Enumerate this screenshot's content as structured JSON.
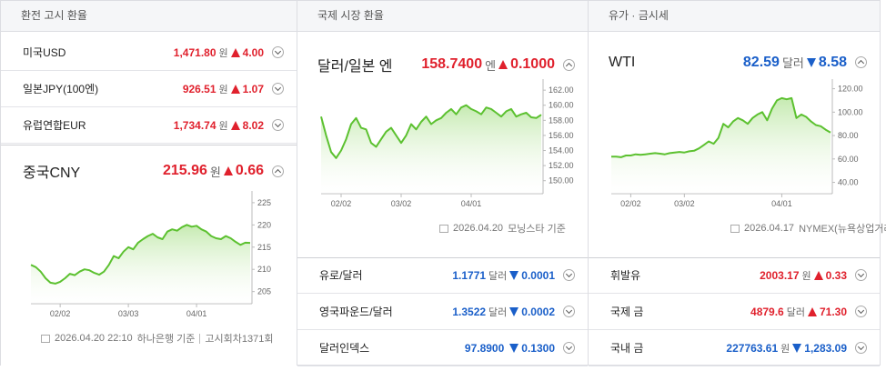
{
  "panels": [
    {
      "title": "환전 고시 환율",
      "rows": [
        {
          "name": "미국USD",
          "value": "1,471.80",
          "unit": "원",
          "change": "4.00",
          "dir": "up"
        },
        {
          "name": "일본JPY(100엔)",
          "value": "926.51",
          "unit": "원",
          "change": "1.07",
          "dir": "up"
        },
        {
          "name": "유럽연합EUR",
          "value": "1,734.74",
          "unit": "원",
          "change": "8.02",
          "dir": "up"
        }
      ],
      "featured": {
        "name": "중국CNY",
        "value": "215.96",
        "unit": "원",
        "change": "0.66",
        "dir": "up"
      },
      "chart": {
        "type": "line",
        "color": "#5cc130",
        "ylim": [
          203.5,
          226
        ],
        "yticks": [
          205,
          210,
          215,
          220,
          225
        ],
        "categories": [
          null,
          null,
          null,
          null,
          null,
          null,
          "02/02",
          null,
          null,
          null,
          null,
          null,
          null,
          null,
          null,
          null,
          null,
          null,
          null,
          null,
          "03/03",
          null,
          null,
          null,
          null,
          null,
          null,
          null,
          null,
          null,
          null,
          null,
          null,
          null,
          "04/01",
          null,
          null,
          null,
          null,
          null,
          null,
          null,
          null,
          null,
          null,
          null
        ],
        "values": [
          211,
          210.5,
          209.5,
          208,
          207,
          206.8,
          207.2,
          208,
          209,
          208.7,
          209.5,
          210,
          209.8,
          209.2,
          208.8,
          209.5,
          211,
          213,
          212.5,
          214,
          215,
          214.5,
          216,
          216.8,
          217.5,
          218,
          217.2,
          216.8,
          218.5,
          219,
          218.7,
          219.5,
          220,
          219.6,
          219.8,
          219,
          218.5,
          217.5,
          217,
          216.8,
          217.5,
          217,
          216.2,
          215.5,
          216,
          215.96
        ]
      },
      "footer": [
        "2026.04.20 22:10",
        "하나은행 기준",
        "고시회차1371회"
      ]
    },
    {
      "title": "국제 시장 환율",
      "featured": {
        "name": "달러/일본 엔",
        "value": "158.7400",
        "unit": "엔",
        "change": "0.1000",
        "dir": "up"
      },
      "chart": {
        "type": "line",
        "color": "#5cc130",
        "ylim": [
          149,
          162.5
        ],
        "yticks": [
          {
            "value": 150,
            "label": "150.00"
          },
          {
            "value": 152,
            "label": "152.00"
          },
          {
            "value": 154,
            "label": "154.00"
          },
          {
            "value": 156,
            "label": "156.00"
          },
          {
            "value": 158,
            "label": "158.00"
          },
          {
            "value": 160,
            "label": "160.00"
          },
          {
            "value": 162,
            "label": "162.00"
          }
        ],
        "categories": [
          null,
          null,
          null,
          null,
          "02/02",
          null,
          null,
          null,
          null,
          null,
          null,
          null,
          null,
          null,
          null,
          null,
          "03/02",
          null,
          null,
          null,
          null,
          null,
          null,
          null,
          null,
          null,
          null,
          null,
          null,
          null,
          "04/01",
          null,
          null,
          null,
          null,
          null,
          null,
          null,
          null,
          null,
          null,
          null,
          null,
          null,
          null
        ],
        "values": [
          158.5,
          156,
          153.8,
          153,
          154,
          155.5,
          157.5,
          158.3,
          157,
          156.8,
          155,
          154.5,
          155.5,
          156.5,
          157,
          156,
          155,
          156,
          157.5,
          156.8,
          157.8,
          158.5,
          157.5,
          158,
          158.3,
          159,
          159.5,
          158.8,
          159.7,
          160,
          159.5,
          159.2,
          158.8,
          159.7,
          159.5,
          159,
          158.5,
          159.2,
          159.5,
          158.5,
          158.8,
          159,
          158.4,
          158.3,
          158.74
        ]
      },
      "footer": [
        "2026.04.20",
        "모닝스타 기준"
      ],
      "rows": [
        {
          "name": "유로/달러",
          "value": "1.1771",
          "unit": "달러",
          "change": "0.0001",
          "dir": "down"
        },
        {
          "name": "영국파운드/달러",
          "value": "1.3522",
          "unit": "달러",
          "change": "0.0002",
          "dir": "down"
        },
        {
          "name": "달러인덱스",
          "value": "97.8900",
          "unit": "",
          "change": "0.1300",
          "dir": "down"
        }
      ]
    },
    {
      "title": "유가 · 금시세",
      "featured": {
        "name": "WTI",
        "value": "82.59",
        "unit": "달러",
        "change": "8.58",
        "dir": "down"
      },
      "chart": {
        "type": "line",
        "color": "#5cc130",
        "ylim": [
          35,
          122
        ],
        "yticks": [
          {
            "value": 40,
            "label": "40.00"
          },
          {
            "value": 60,
            "label": "60.00"
          },
          {
            "value": 80,
            "label": "80.00"
          },
          {
            "value": 100,
            "label": "100.00"
          },
          {
            "value": 120,
            "label": "120.00"
          }
        ],
        "categories": [
          null,
          null,
          null,
          null,
          "02/02",
          null,
          null,
          null,
          null,
          null,
          null,
          null,
          null,
          null,
          null,
          "03/02",
          null,
          null,
          null,
          null,
          null,
          null,
          null,
          null,
          null,
          null,
          null,
          null,
          null,
          null,
          null,
          null,
          null,
          null,
          null,
          "04/01",
          null,
          null,
          null,
          null,
          null,
          null,
          null,
          null,
          null,
          null
        ],
        "values": [
          62,
          62,
          61.5,
          63,
          63,
          64,
          63.5,
          64,
          64.5,
          65,
          64.5,
          64,
          65,
          65.5,
          66,
          65.5,
          66.5,
          67,
          69,
          72,
          75,
          73,
          78,
          90,
          87,
          92,
          95,
          93,
          90,
          95,
          98,
          100,
          93,
          103,
          110,
          112,
          111,
          112,
          95,
          98,
          96,
          92,
          89,
          88,
          85,
          82.59
        ]
      },
      "footer": [
        "2026.04.17",
        "NYMEX(뉴욕상업거래소) 기준"
      ],
      "rows": [
        {
          "name": "휘발유",
          "value": "2003.17",
          "unit": "원",
          "change": "0.33",
          "dir": "up"
        },
        {
          "name": "국제 금",
          "value": "4879.6",
          "unit": "달러",
          "change": "71.30",
          "dir": "up"
        },
        {
          "name": "국내 금",
          "value": "227763.61",
          "unit": "원",
          "change": "1,283.09",
          "dir": "down"
        }
      ]
    }
  ]
}
